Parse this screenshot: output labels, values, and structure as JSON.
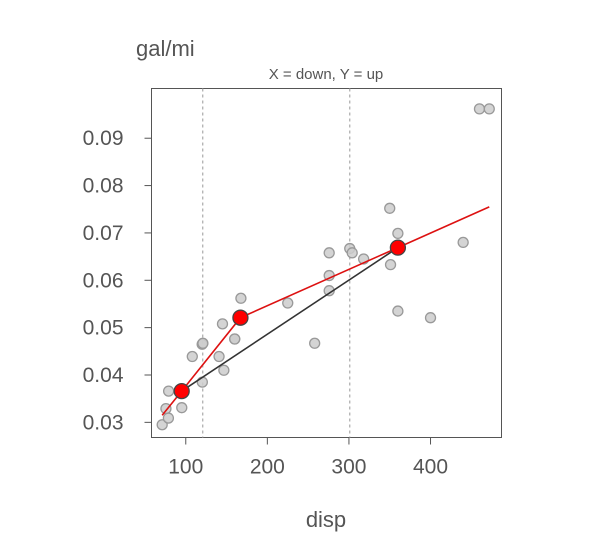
{
  "chart_data": {
    "type": "scatter",
    "ylabel": "gal/mi",
    "subtitle": "X = down, Y = up",
    "xlabel": "disp",
    "xlim": [
      58,
      487
    ],
    "ylim": [
      0.0268,
      0.1005
    ],
    "x_ticks": [
      100,
      200,
      300,
      400
    ],
    "x_tick_labels": [
      "100",
      "200",
      "300",
      "400"
    ],
    "y_ticks": [
      0.03,
      0.04,
      0.05,
      0.06,
      0.07,
      0.08,
      0.09
    ],
    "y_tick_labels": [
      "0.03",
      "0.04",
      "0.05",
      "0.06",
      "0.07",
      "0.08",
      "0.09"
    ],
    "vertical_reference_lines": [
      120.8,
      301
    ],
    "points": [
      {
        "x": 71.1,
        "y": 0.0295
      },
      {
        "x": 75.7,
        "y": 0.0329
      },
      {
        "x": 78.7,
        "y": 0.0309
      },
      {
        "x": 79.0,
        "y": 0.0366
      },
      {
        "x": 95.1,
        "y": 0.0331
      },
      {
        "x": 108.0,
        "y": 0.0439
      },
      {
        "x": 120.1,
        "y": 0.0465
      },
      {
        "x": 120.3,
        "y": 0.0385
      },
      {
        "x": 121.0,
        "y": 0.0467
      },
      {
        "x": 140.8,
        "y": 0.0439
      },
      {
        "x": 145.0,
        "y": 0.0508
      },
      {
        "x": 146.7,
        "y": 0.041
      },
      {
        "x": 160.0,
        "y": 0.0476
      },
      {
        "x": 160.0,
        "y": 0.0476
      },
      {
        "x": 167.6,
        "y": 0.0521
      },
      {
        "x": 167.6,
        "y": 0.0562
      },
      {
        "x": 225.0,
        "y": 0.0552
      },
      {
        "x": 258.0,
        "y": 0.0467
      },
      {
        "x": 275.8,
        "y": 0.061
      },
      {
        "x": 275.8,
        "y": 0.0578
      },
      {
        "x": 275.8,
        "y": 0.0658
      },
      {
        "x": 301.0,
        "y": 0.0667
      },
      {
        "x": 304.0,
        "y": 0.0658
      },
      {
        "x": 318.0,
        "y": 0.0645
      },
      {
        "x": 350.0,
        "y": 0.0752
      },
      {
        "x": 351.0,
        "y": 0.0633
      },
      {
        "x": 360.0,
        "y": 0.0699
      },
      {
        "x": 360.0,
        "y": 0.0535
      },
      {
        "x": 400.0,
        "y": 0.0521
      },
      {
        "x": 440.0,
        "y": 0.068
      },
      {
        "x": 460.0,
        "y": 0.0962
      },
      {
        "x": 472.0,
        "y": 0.0962
      }
    ],
    "series": [
      {
        "type": "line",
        "color": "#333333",
        "x": [
          95,
          360
        ],
        "y": [
          0.0366,
          0.0669
        ]
      },
      {
        "type": "line",
        "color": "#dd1111",
        "x": [
          71.1,
          95,
          167,
          360,
          472
        ],
        "y": [
          0.0315,
          0.0366,
          0.0521,
          0.0669,
          0.0755
        ]
      },
      {
        "type": "marker",
        "color": "#ff0000",
        "x": [
          95,
          167,
          360
        ],
        "y": [
          0.0366,
          0.0521,
          0.0669
        ]
      }
    ]
  }
}
